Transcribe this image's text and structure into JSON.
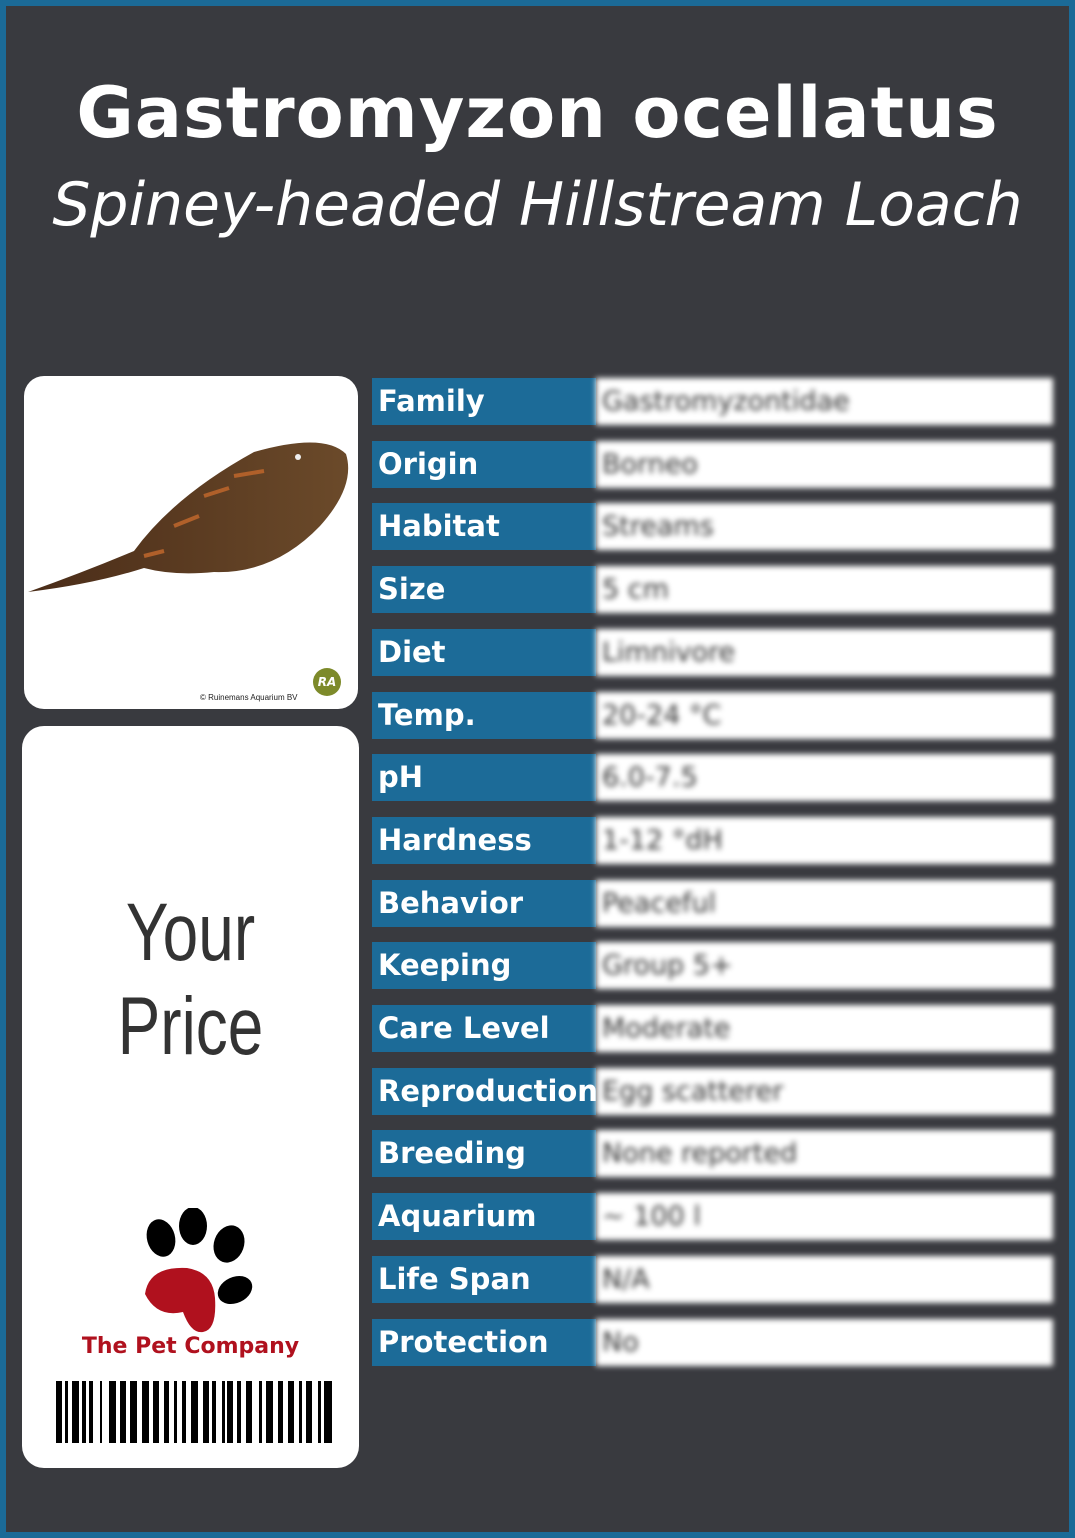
{
  "header": {
    "title": "Gastromyzon ocellatus",
    "subtitle": "Spiney-headed Hillstream Loach"
  },
  "image": {
    "copyright": "© Ruinemans Aquarium BV",
    "logo_text": "RA"
  },
  "price": {
    "label": "Your Price"
  },
  "brand": {
    "name": "The Pet Company",
    "paw_color": "#b0111e"
  },
  "colors": {
    "label_bg": "#1c6b98",
    "background": "#393a3f",
    "border": "#1b6a97"
  },
  "facts": [
    {
      "label": "Family",
      "value": "Gastromyzontidae"
    },
    {
      "label": "Origin",
      "value": "Borneo"
    },
    {
      "label": "Habitat",
      "value": "Streams"
    },
    {
      "label": "Size",
      "value": "5 cm"
    },
    {
      "label": "Diet",
      "value": "Limnivore"
    },
    {
      "label": "Temp.",
      "value": "20-24 °C"
    },
    {
      "label": "pH",
      "value": "6.0-7.5"
    },
    {
      "label": "Hardness",
      "value": "1-12 °dH"
    },
    {
      "label": "Behavior",
      "value": "Peaceful"
    },
    {
      "label": "Keeping",
      "value": "Group 5+"
    },
    {
      "label": "Care Level",
      "value": "Moderate"
    },
    {
      "label": "Reproduction",
      "value": "Egg scatterer"
    },
    {
      "label": "Breeding",
      "value": "None reported"
    },
    {
      "label": "Aquarium",
      "value": "~ 100 l"
    },
    {
      "label": "Life Span",
      "value": "N/A"
    },
    {
      "label": "Protection",
      "value": "No"
    }
  ]
}
